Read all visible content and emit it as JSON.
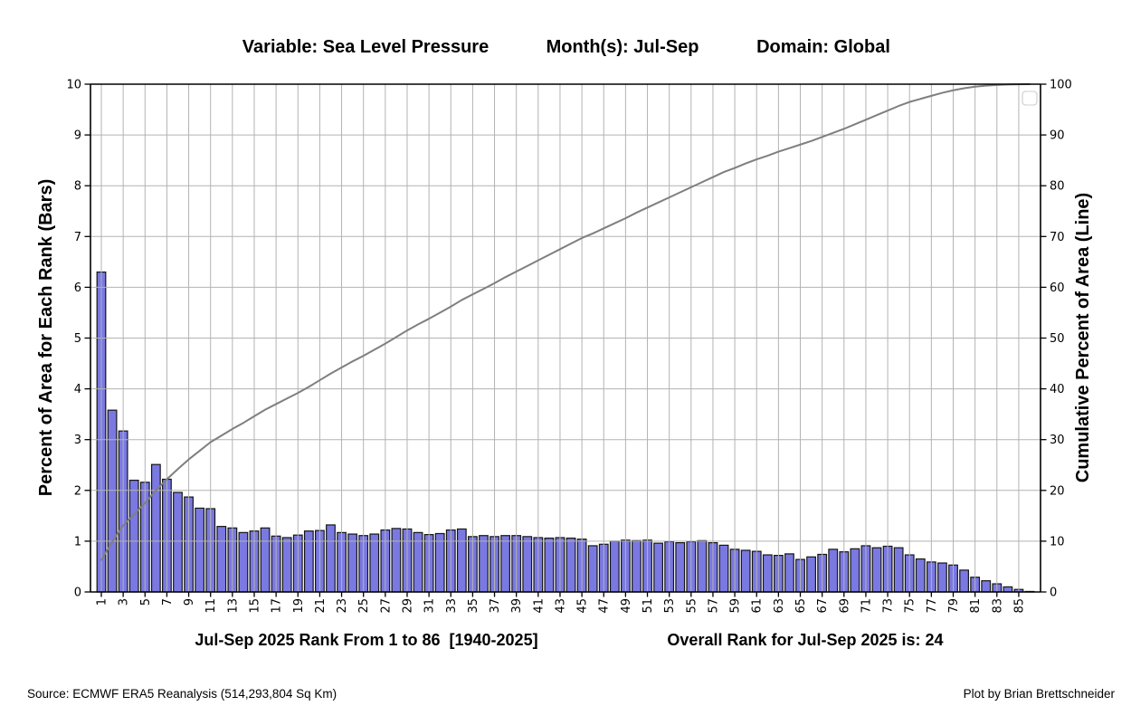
{
  "title": {
    "variable_part": "Variable: Sea Level Pressure",
    "months_part": "Month(s): Jul-Sep",
    "domain_part": "Domain: Global"
  },
  "footer": {
    "source": "Source: ECMWF ERA5 Reanalysis (514,293,804 Sq Km)",
    "credit": "Plot by Brian Brettschneider"
  },
  "chart_data": {
    "type": "bar",
    "line_overlay": true,
    "x": [
      1,
      2,
      3,
      4,
      5,
      6,
      7,
      8,
      9,
      10,
      11,
      12,
      13,
      14,
      15,
      16,
      17,
      18,
      19,
      20,
      21,
      22,
      23,
      24,
      25,
      26,
      27,
      28,
      29,
      30,
      31,
      32,
      33,
      34,
      35,
      36,
      37,
      38,
      39,
      40,
      41,
      42,
      43,
      44,
      45,
      46,
      47,
      48,
      49,
      50,
      51,
      52,
      53,
      54,
      55,
      56,
      57,
      58,
      59,
      60,
      61,
      62,
      63,
      64,
      65,
      66,
      67,
      68,
      69,
      70,
      71,
      72,
      73,
      74,
      75,
      76,
      77,
      78,
      79,
      80,
      81,
      82,
      83,
      84,
      85,
      86
    ],
    "series": [
      {
        "name": "Percent of Area for Each Rank",
        "type": "bar",
        "axis": "left",
        "values": [
          6.3,
          3.58,
          3.17,
          2.2,
          2.16,
          2.51,
          2.22,
          1.96,
          1.87,
          1.65,
          1.64,
          1.29,
          1.26,
          1.17,
          1.2,
          1.26,
          1.1,
          1.07,
          1.12,
          1.2,
          1.21,
          1.32,
          1.17,
          1.14,
          1.11,
          1.14,
          1.22,
          1.25,
          1.24,
          1.17,
          1.13,
          1.15,
          1.22,
          1.24,
          1.09,
          1.11,
          1.09,
          1.11,
          1.11,
          1.09,
          1.07,
          1.06,
          1.07,
          1.06,
          1.04,
          0.91,
          0.94,
          1.0,
          1.02,
          1.01,
          1.02,
          0.96,
          0.99,
          0.97,
          0.99,
          1.01,
          0.97,
          0.92,
          0.84,
          0.82,
          0.8,
          0.73,
          0.72,
          0.75,
          0.64,
          0.69,
          0.74,
          0.84,
          0.79,
          0.85,
          0.91,
          0.87,
          0.9,
          0.87,
          0.73,
          0.65,
          0.59,
          0.57,
          0.53,
          0.43,
          0.29,
          0.22,
          0.16,
          0.1,
          0.05,
          0.01
        ]
      },
      {
        "name": "Cumulative Percent of Area",
        "type": "line",
        "axis": "right",
        "values": [
          6.3,
          9.9,
          13.1,
          15.3,
          17.5,
          20.0,
          22.2,
          24.2,
          26.1,
          27.8,
          29.5,
          30.8,
          32.1,
          33.3,
          34.6,
          35.9,
          37.0,
          38.1,
          39.2,
          40.4,
          41.7,
          43.0,
          44.2,
          45.4,
          46.5,
          47.7,
          48.9,
          50.2,
          51.5,
          52.7,
          53.8,
          55.0,
          56.2,
          57.5,
          58.6,
          59.7,
          60.8,
          62.0,
          63.1,
          64.2,
          65.3,
          66.4,
          67.5,
          68.6,
          69.7,
          70.6,
          71.6,
          72.6,
          73.6,
          74.7,
          75.7,
          76.7,
          77.7,
          78.7,
          79.7,
          80.7,
          81.7,
          82.7,
          83.5,
          84.4,
          85.2,
          85.9,
          86.7,
          87.4,
          88.1,
          88.8,
          89.6,
          90.4,
          91.2,
          92.1,
          93.0,
          93.9,
          94.8,
          95.7,
          96.5,
          97.1,
          97.7,
          98.3,
          98.8,
          99.2,
          99.5,
          99.7,
          99.85,
          99.93,
          99.98,
          100.0
        ]
      }
    ],
    "x_axis": {
      "label": "Jul-Sep 2025 Rank From 1 to 86  [1940-2025]",
      "tick_start": 1,
      "tick_step": 2,
      "tick_end": 85
    },
    "annotation": "Overall Rank for Jul-Sep 2025 is: 24",
    "left_axis": {
      "label": "Percent of Area for Each Rank (Bars)",
      "min": 0,
      "max": 10,
      "tick_step": 1
    },
    "right_axis": {
      "label": "Cumulative Percent of Area (Line)",
      "min": 0,
      "max": 100,
      "tick_step": 10
    },
    "grid": true,
    "legend": {
      "visible": true,
      "entries": []
    },
    "colors": {
      "bar_fill": "#7a79e2",
      "bar_edge": "#151515",
      "grid": "#b3b3b3",
      "line": "#7f7f7f",
      "axis": "#000000"
    }
  }
}
